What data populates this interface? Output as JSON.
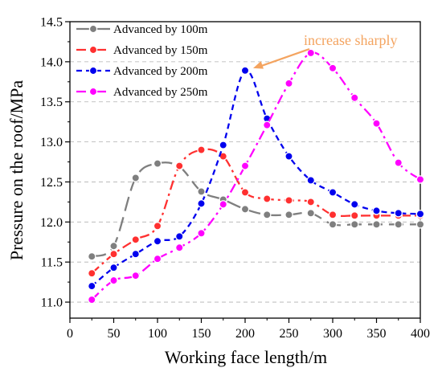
{
  "chart_data": {
    "type": "line",
    "title": "",
    "xlabel": "Working face length/m",
    "ylabel": "Pressure on the roof/MPa",
    "xlim": [
      0,
      400
    ],
    "ylim": [
      10.8,
      14.5
    ],
    "xticks": [
      0,
      50,
      100,
      150,
      200,
      250,
      300,
      350,
      400
    ],
    "yticks": [
      11.0,
      11.5,
      12.0,
      12.5,
      13.0,
      13.5,
      14.0,
      14.5
    ],
    "ytick_labels": [
      "11.0",
      "11.5",
      "12.0",
      "12.5",
      "13.0",
      "13.5",
      "14.0",
      "14.5"
    ],
    "grid": "horizontal dashed",
    "legend_placement": "top-left",
    "series": [
      {
        "name": "Advanced by 100m",
        "color": "#7f7f7f",
        "line_style": "long-dash",
        "points": [
          [
            25,
            11.57
          ],
          [
            50,
            11.7
          ],
          [
            75,
            12.55
          ],
          [
            100,
            12.73
          ],
          [
            125,
            12.69
          ],
          [
            150,
            12.38
          ],
          [
            175,
            12.28
          ],
          [
            200,
            12.16
          ],
          [
            225,
            12.09
          ],
          [
            250,
            12.09
          ],
          [
            275,
            12.11
          ],
          [
            300,
            11.97
          ],
          [
            325,
            11.97
          ],
          [
            350,
            11.97
          ],
          [
            375,
            11.97
          ],
          [
            400,
            11.97
          ]
        ]
      },
      {
        "name": "Advanced by 150m",
        "color": "#ff3030",
        "line_style": "dash-dot",
        "points": [
          [
            25,
            11.36
          ],
          [
            50,
            11.6
          ],
          [
            75,
            11.78
          ],
          [
            100,
            11.95
          ],
          [
            125,
            12.7
          ],
          [
            150,
            12.9
          ],
          [
            175,
            12.82
          ],
          [
            200,
            12.37
          ],
          [
            225,
            12.29
          ],
          [
            250,
            12.27
          ],
          [
            275,
            12.25
          ],
          [
            300,
            12.09
          ],
          [
            325,
            12.08
          ],
          [
            350,
            12.08
          ],
          [
            375,
            12.08
          ],
          [
            400,
            12.08
          ]
        ]
      },
      {
        "name": "Advanced by 200m",
        "color": "#0000ee",
        "line_style": "short-dash",
        "points": [
          [
            25,
            11.2
          ],
          [
            50,
            11.43
          ],
          [
            75,
            11.6
          ],
          [
            100,
            11.76
          ],
          [
            125,
            11.82
          ],
          [
            150,
            12.23
          ],
          [
            175,
            12.96
          ],
          [
            200,
            13.89
          ],
          [
            225,
            13.29
          ],
          [
            250,
            12.82
          ],
          [
            275,
            12.52
          ],
          [
            300,
            12.37
          ],
          [
            325,
            12.22
          ],
          [
            350,
            12.14
          ],
          [
            375,
            12.11
          ],
          [
            400,
            12.1
          ]
        ]
      },
      {
        "name": "Advanced by 250m",
        "color": "#ff00ff",
        "line_style": "dash-dot",
        "points": [
          [
            25,
            11.03
          ],
          [
            50,
            11.27
          ],
          [
            75,
            11.33
          ],
          [
            100,
            11.54
          ],
          [
            125,
            11.68
          ],
          [
            150,
            11.86
          ],
          [
            175,
            12.22
          ],
          [
            200,
            12.7
          ],
          [
            225,
            13.21
          ],
          [
            250,
            13.73
          ],
          [
            275,
            14.11
          ],
          [
            300,
            13.92
          ],
          [
            325,
            13.55
          ],
          [
            350,
            13.23
          ],
          [
            375,
            12.74
          ],
          [
            400,
            12.53
          ]
        ]
      }
    ],
    "annotation": {
      "text": "increase sharply",
      "color": "#f4a460",
      "arrow_target": [
        200,
        13.89
      ]
    }
  }
}
